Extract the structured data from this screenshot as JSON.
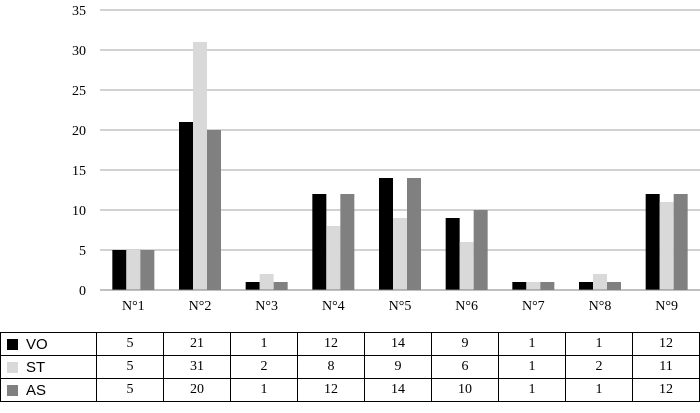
{
  "chart_data": {
    "type": "bar",
    "categories": [
      "N°1",
      "N°2",
      "N°3",
      "N°4",
      "N°5",
      "N°6",
      "N°7",
      "N°8",
      "N°9"
    ],
    "series": [
      {
        "name": "VO",
        "color": "#000000",
        "values": [
          5,
          21,
          1,
          12,
          14,
          9,
          1,
          1,
          12
        ]
      },
      {
        "name": "ST",
        "color": "#d9d9d9",
        "values": [
          5,
          31,
          2,
          8,
          9,
          6,
          1,
          2,
          11
        ]
      },
      {
        "name": "AS",
        "color": "#808080",
        "values": [
          5,
          20,
          1,
          12,
          14,
          10,
          1,
          1,
          12
        ]
      }
    ],
    "ylim": [
      0,
      35
    ],
    "yticks": [
      "0",
      "5",
      "10",
      "15",
      "20",
      "25",
      "30",
      "35"
    ],
    "grid": true,
    "legend": "data-table-below"
  }
}
